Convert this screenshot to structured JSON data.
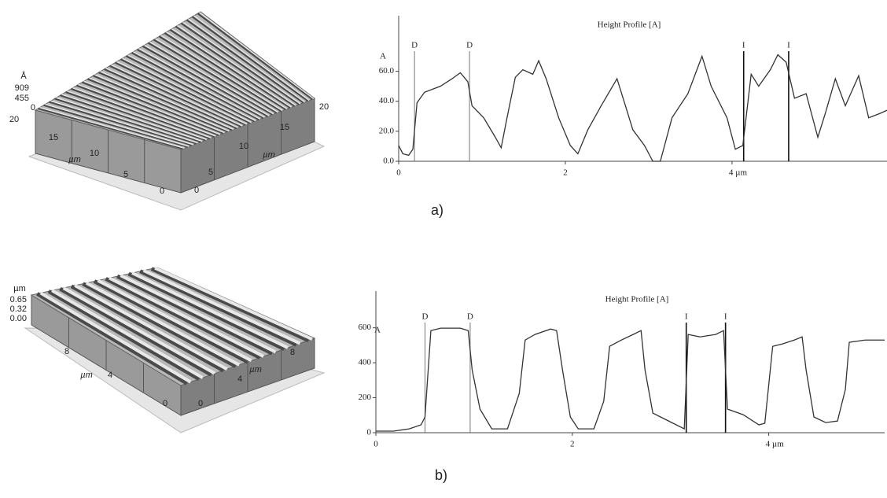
{
  "chart_data": [
    {
      "type": "line",
      "title": "Height Profile [A]",
      "y_label": "A",
      "xlim": [
        0,
        5.86
      ],
      "ylim": [
        0,
        97
      ],
      "xticks": [
        0,
        2,
        {
          "value": 4,
          "label": "4 µm"
        }
      ],
      "yticks": [
        {
          "value": 0,
          "label": "0.0"
        },
        {
          "value": 20,
          "label": "20.0"
        },
        {
          "value": 40,
          "label": "40.0"
        },
        {
          "value": 60,
          "label": "60.0"
        }
      ],
      "cursors": [
        {
          "x": 0.19,
          "label": "D"
        },
        {
          "x": 0.85,
          "label": "D"
        },
        {
          "x": 4.14,
          "label": "I"
        },
        {
          "x": 4.68,
          "label": "I"
        }
      ],
      "color": "#333333",
      "x": [
        0,
        0.05,
        0.12,
        0.17,
        0.22,
        0.31,
        0.5,
        0.64,
        0.74,
        0.83,
        0.88,
        1.02,
        1.16,
        1.23,
        1.3,
        1.4,
        1.49,
        1.61,
        1.68,
        1.77,
        1.92,
        2.06,
        2.15,
        2.27,
        2.43,
        2.62,
        2.71,
        2.81,
        2.95,
        3.05,
        3.14,
        3.28,
        3.47,
        3.64,
        3.75,
        3.94,
        4.04,
        4.13,
        4.23,
        4.32,
        4.46,
        4.55,
        4.65,
        4.75,
        4.89,
        5.03,
        5.12,
        5.24,
        5.36,
        5.52,
        5.64,
        5.78,
        5.86
      ],
      "values": [
        10.5,
        5,
        4,
        8,
        39,
        46,
        50,
        55,
        59,
        53,
        37,
        29,
        16,
        9,
        29,
        56,
        61,
        58,
        67,
        55,
        29,
        10.5,
        5,
        21,
        37,
        55,
        39,
        21,
        10.5,
        0,
        0,
        29,
        45,
        70,
        50,
        29,
        8,
        10.5,
        58,
        50,
        61,
        71,
        66,
        42,
        45,
        16,
        32,
        55,
        37,
        57,
        29,
        32,
        34
      ]
    },
    {
      "type": "line",
      "title": "Height Profile [A]",
      "y_label": "A",
      "xlim": [
        0,
        5.18
      ],
      "ylim": [
        0,
        810
      ],
      "xticks": [
        0,
        2,
        {
          "value": 4,
          "label": "4 µm"
        }
      ],
      "yticks": [
        0,
        200,
        400,
        600
      ],
      "cursors": [
        {
          "x": 0.5,
          "label": "D"
        },
        {
          "x": 0.96,
          "label": "D"
        },
        {
          "x": 3.16,
          "label": "I"
        },
        {
          "x": 3.56,
          "label": "I"
        }
      ],
      "color": "#333333",
      "x": [
        0,
        0.18,
        0.34,
        0.46,
        0.5,
        0.56,
        0.66,
        0.86,
        0.94,
        0.98,
        1.06,
        1.18,
        1.34,
        1.46,
        1.52,
        1.62,
        1.78,
        1.84,
        1.9,
        1.98,
        2.06,
        2.22,
        2.32,
        2.38,
        2.5,
        2.62,
        2.7,
        2.74,
        2.82,
        2.98,
        3.14,
        3.18,
        3.3,
        3.46,
        3.54,
        3.58,
        3.74,
        3.9,
        3.96,
        4.04,
        4.14,
        4.26,
        4.34,
        4.38,
        4.46,
        4.58,
        4.7,
        4.78,
        4.82,
        4.98,
        5.18
      ],
      "values": [
        9,
        9,
        22,
        45,
        90,
        584,
        598,
        598,
        584,
        360,
        135,
        22,
        22,
        225,
        530,
        562,
        593,
        584,
        360,
        90,
        22,
        22,
        180,
        494,
        530,
        562,
        584,
        360,
        112,
        67,
        22,
        562,
        548,
        562,
        584,
        135,
        103,
        45,
        54,
        494,
        508,
        530,
        548,
        360,
        90,
        58,
        67,
        247,
        517,
        530,
        530
      ]
    }
  ],
  "surfaces": [
    {
      "z_unit": "Å",
      "z_ticks": [
        "909",
        "455",
        "0"
      ],
      "left_ticks": [
        "20",
        "15",
        "10",
        "5",
        "0"
      ],
      "left_unit": "µm",
      "right_ticks": [
        "0",
        "5",
        "10",
        "15",
        "20"
      ],
      "right_unit": "µm"
    },
    {
      "z_unit": "µm",
      "z_ticks": [
        "0.65",
        "0.32",
        "0.00"
      ],
      "left_ticks": [
        "8",
        "4",
        "0"
      ],
      "left_unit": "µm",
      "right_ticks": [
        "0",
        "4",
        "8"
      ],
      "right_unit": "µm"
    }
  ],
  "captions": [
    "a)",
    "b)"
  ]
}
